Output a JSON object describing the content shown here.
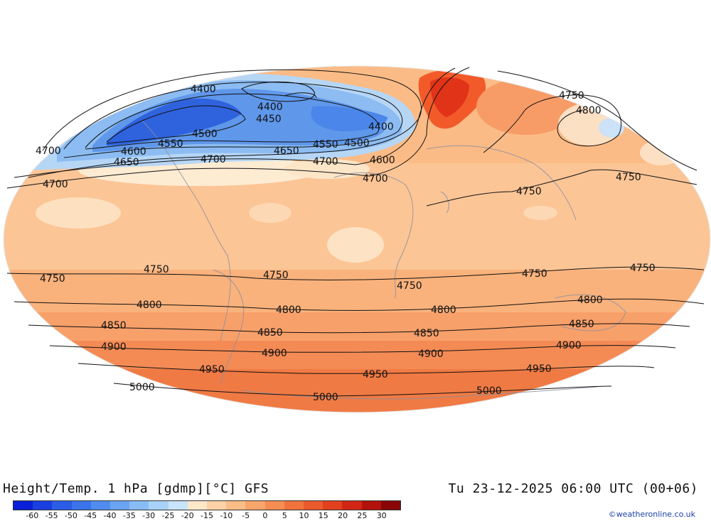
{
  "title": "Height/Temp. 1 hPa [gdmp][°C] GFS",
  "timestamp": "Tu 23-12-2025 06:00 UTC (00+06)",
  "credit": "©weatheronline.co.uk",
  "colorbar": {
    "tick_labels": [
      "-60",
      "-55",
      "-50",
      "-45",
      "-40",
      "-35",
      "-30",
      "-25",
      "-20",
      "-15",
      "-10",
      "-5",
      "0",
      "5",
      "10",
      "15",
      "20",
      "25",
      "30"
    ],
    "colors": [
      "#0a1fd8",
      "#1a3fe0",
      "#2a5ce6",
      "#3b74ea",
      "#4f8cee",
      "#6aa4f2",
      "#88bcf5",
      "#a8d2f8",
      "#c8e4fa",
      "#fde8c8",
      "#fcd2a6",
      "#fbbd88",
      "#f8a56b",
      "#f58d52",
      "#f0733e",
      "#ea5a2c",
      "#e2401f",
      "#d22614",
      "#b3120c",
      "#8a0606"
    ]
  },
  "contour_labels": [
    {
      "text": "4400"
    },
    {
      "text": "4450"
    },
    {
      "text": "4500"
    },
    {
      "text": "4550"
    },
    {
      "text": "4600"
    },
    {
      "text": "4650"
    },
    {
      "text": "4700"
    },
    {
      "text": "4700"
    },
    {
      "text": "4700"
    },
    {
      "text": "4650"
    },
    {
      "text": "4550"
    },
    {
      "text": "4500"
    },
    {
      "text": "4400"
    },
    {
      "text": "4600"
    },
    {
      "text": "4700"
    },
    {
      "text": "4750"
    },
    {
      "text": "4800"
    },
    {
      "text": "4750"
    },
    {
      "text": "4750"
    },
    {
      "text": "4750"
    },
    {
      "text": "4750"
    },
    {
      "text": "4750"
    },
    {
      "text": "4750"
    },
    {
      "text": "4750"
    },
    {
      "text": "4750"
    },
    {
      "text": "4800"
    },
    {
      "text": "4800"
    },
    {
      "text": "4800"
    },
    {
      "text": "4800"
    },
    {
      "text": "4850"
    },
    {
      "text": "4850"
    },
    {
      "text": "4850"
    },
    {
      "text": "4850"
    },
    {
      "text": "4900"
    },
    {
      "text": "4900"
    },
    {
      "text": "4900"
    },
    {
      "text": "4900"
    },
    {
      "text": "4950"
    },
    {
      "text": "4950"
    },
    {
      "text": "4950"
    },
    {
      "text": "5000"
    },
    {
      "text": "5000"
    },
    {
      "text": "5000"
    },
    {
      "text": "4400"
    },
    {
      "text": "4700"
    }
  ]
}
